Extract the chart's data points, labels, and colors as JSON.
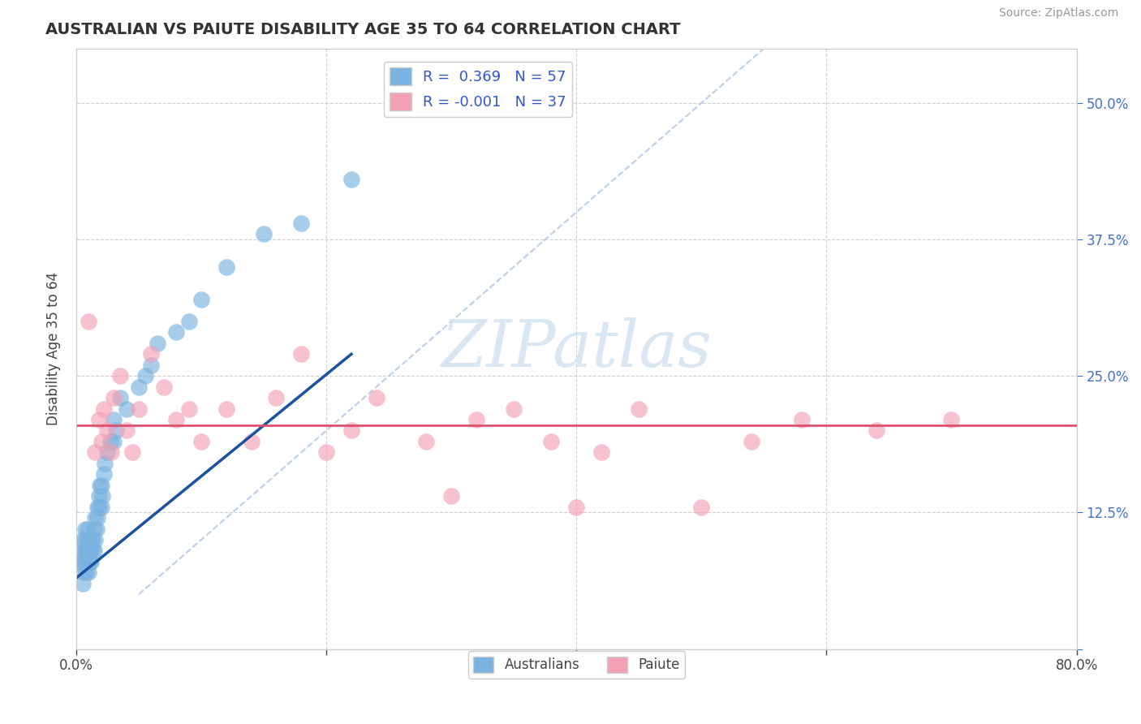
{
  "title": "AUSTRALIAN VS PAIUTE DISABILITY AGE 35 TO 64 CORRELATION CHART",
  "source": "Source: ZipAtlas.com",
  "ylabel": "Disability Age 35 to 64",
  "xlim": [
    0.0,
    0.8
  ],
  "ylim": [
    0.0,
    0.55
  ],
  "xticks": [
    0.0,
    0.2,
    0.4,
    0.6,
    0.8
  ],
  "xtick_labels": [
    "0.0%",
    "",
    "",
    "",
    "80.0%"
  ],
  "yticks": [
    0.0,
    0.125,
    0.25,
    0.375,
    0.5
  ],
  "ytick_labels_right": [
    "",
    "12.5%",
    "25.0%",
    "37.5%",
    "50.0%"
  ],
  "R_australian": 0.369,
  "N_australian": 57,
  "R_paiute": -0.001,
  "N_paiute": 37,
  "australian_color": "#7ab3e0",
  "paiute_color": "#f4a0b5",
  "trend_line_australian_color": "#1a52a0",
  "trend_line_paiute_color": "#e05070",
  "ref_line_color": "#aac4e0",
  "grid_color": "#cccccc",
  "background_color": "#ffffff",
  "watermark_color": "#d0e0f0",
  "aus_x": [
    0.003,
    0.004,
    0.005,
    0.005,
    0.006,
    0.006,
    0.007,
    0.007,
    0.007,
    0.008,
    0.008,
    0.008,
    0.009,
    0.009,
    0.01,
    0.01,
    0.01,
    0.01,
    0.011,
    0.011,
    0.012,
    0.012,
    0.013,
    0.013,
    0.014,
    0.014,
    0.015,
    0.015,
    0.016,
    0.017,
    0.017,
    0.018,
    0.018,
    0.019,
    0.02,
    0.02,
    0.021,
    0.022,
    0.023,
    0.025,
    0.027,
    0.03,
    0.03,
    0.032,
    0.035,
    0.04,
    0.05,
    0.055,
    0.06,
    0.065,
    0.08,
    0.09,
    0.1,
    0.12,
    0.15,
    0.18,
    0.22
  ],
  "aus_y": [
    0.08,
    0.09,
    0.1,
    0.06,
    0.08,
    0.07,
    0.09,
    0.1,
    0.11,
    0.07,
    0.08,
    0.09,
    0.1,
    0.11,
    0.07,
    0.08,
    0.09,
    0.1,
    0.08,
    0.09,
    0.08,
    0.1,
    0.09,
    0.1,
    0.09,
    0.11,
    0.1,
    0.12,
    0.11,
    0.12,
    0.13,
    0.13,
    0.14,
    0.15,
    0.13,
    0.15,
    0.14,
    0.16,
    0.17,
    0.18,
    0.19,
    0.19,
    0.21,
    0.2,
    0.23,
    0.22,
    0.24,
    0.25,
    0.26,
    0.28,
    0.29,
    0.3,
    0.32,
    0.35,
    0.38,
    0.39,
    0.43
  ],
  "pai_x": [
    0.01,
    0.015,
    0.018,
    0.02,
    0.022,
    0.025,
    0.028,
    0.03,
    0.035,
    0.04,
    0.045,
    0.05,
    0.06,
    0.07,
    0.08,
    0.09,
    0.1,
    0.12,
    0.14,
    0.16,
    0.18,
    0.2,
    0.22,
    0.24,
    0.28,
    0.3,
    0.32,
    0.35,
    0.38,
    0.4,
    0.42,
    0.45,
    0.5,
    0.54,
    0.58,
    0.64,
    0.7
  ],
  "pai_y": [
    0.3,
    0.18,
    0.21,
    0.19,
    0.22,
    0.2,
    0.18,
    0.23,
    0.25,
    0.2,
    0.18,
    0.22,
    0.27,
    0.24,
    0.21,
    0.22,
    0.19,
    0.22,
    0.19,
    0.23,
    0.27,
    0.18,
    0.2,
    0.23,
    0.19,
    0.14,
    0.21,
    0.22,
    0.19,
    0.13,
    0.18,
    0.22,
    0.13,
    0.19,
    0.21,
    0.2,
    0.21
  ],
  "aus_trend_x0": 0.0,
  "aus_trend_y0": 0.065,
  "aus_trend_x1": 0.22,
  "aus_trend_y1": 0.27,
  "pai_trend_y": 0.205,
  "ref_line_x0": 0.05,
  "ref_line_y0": 0.05,
  "ref_line_x1": 0.55,
  "ref_line_y1": 0.55
}
